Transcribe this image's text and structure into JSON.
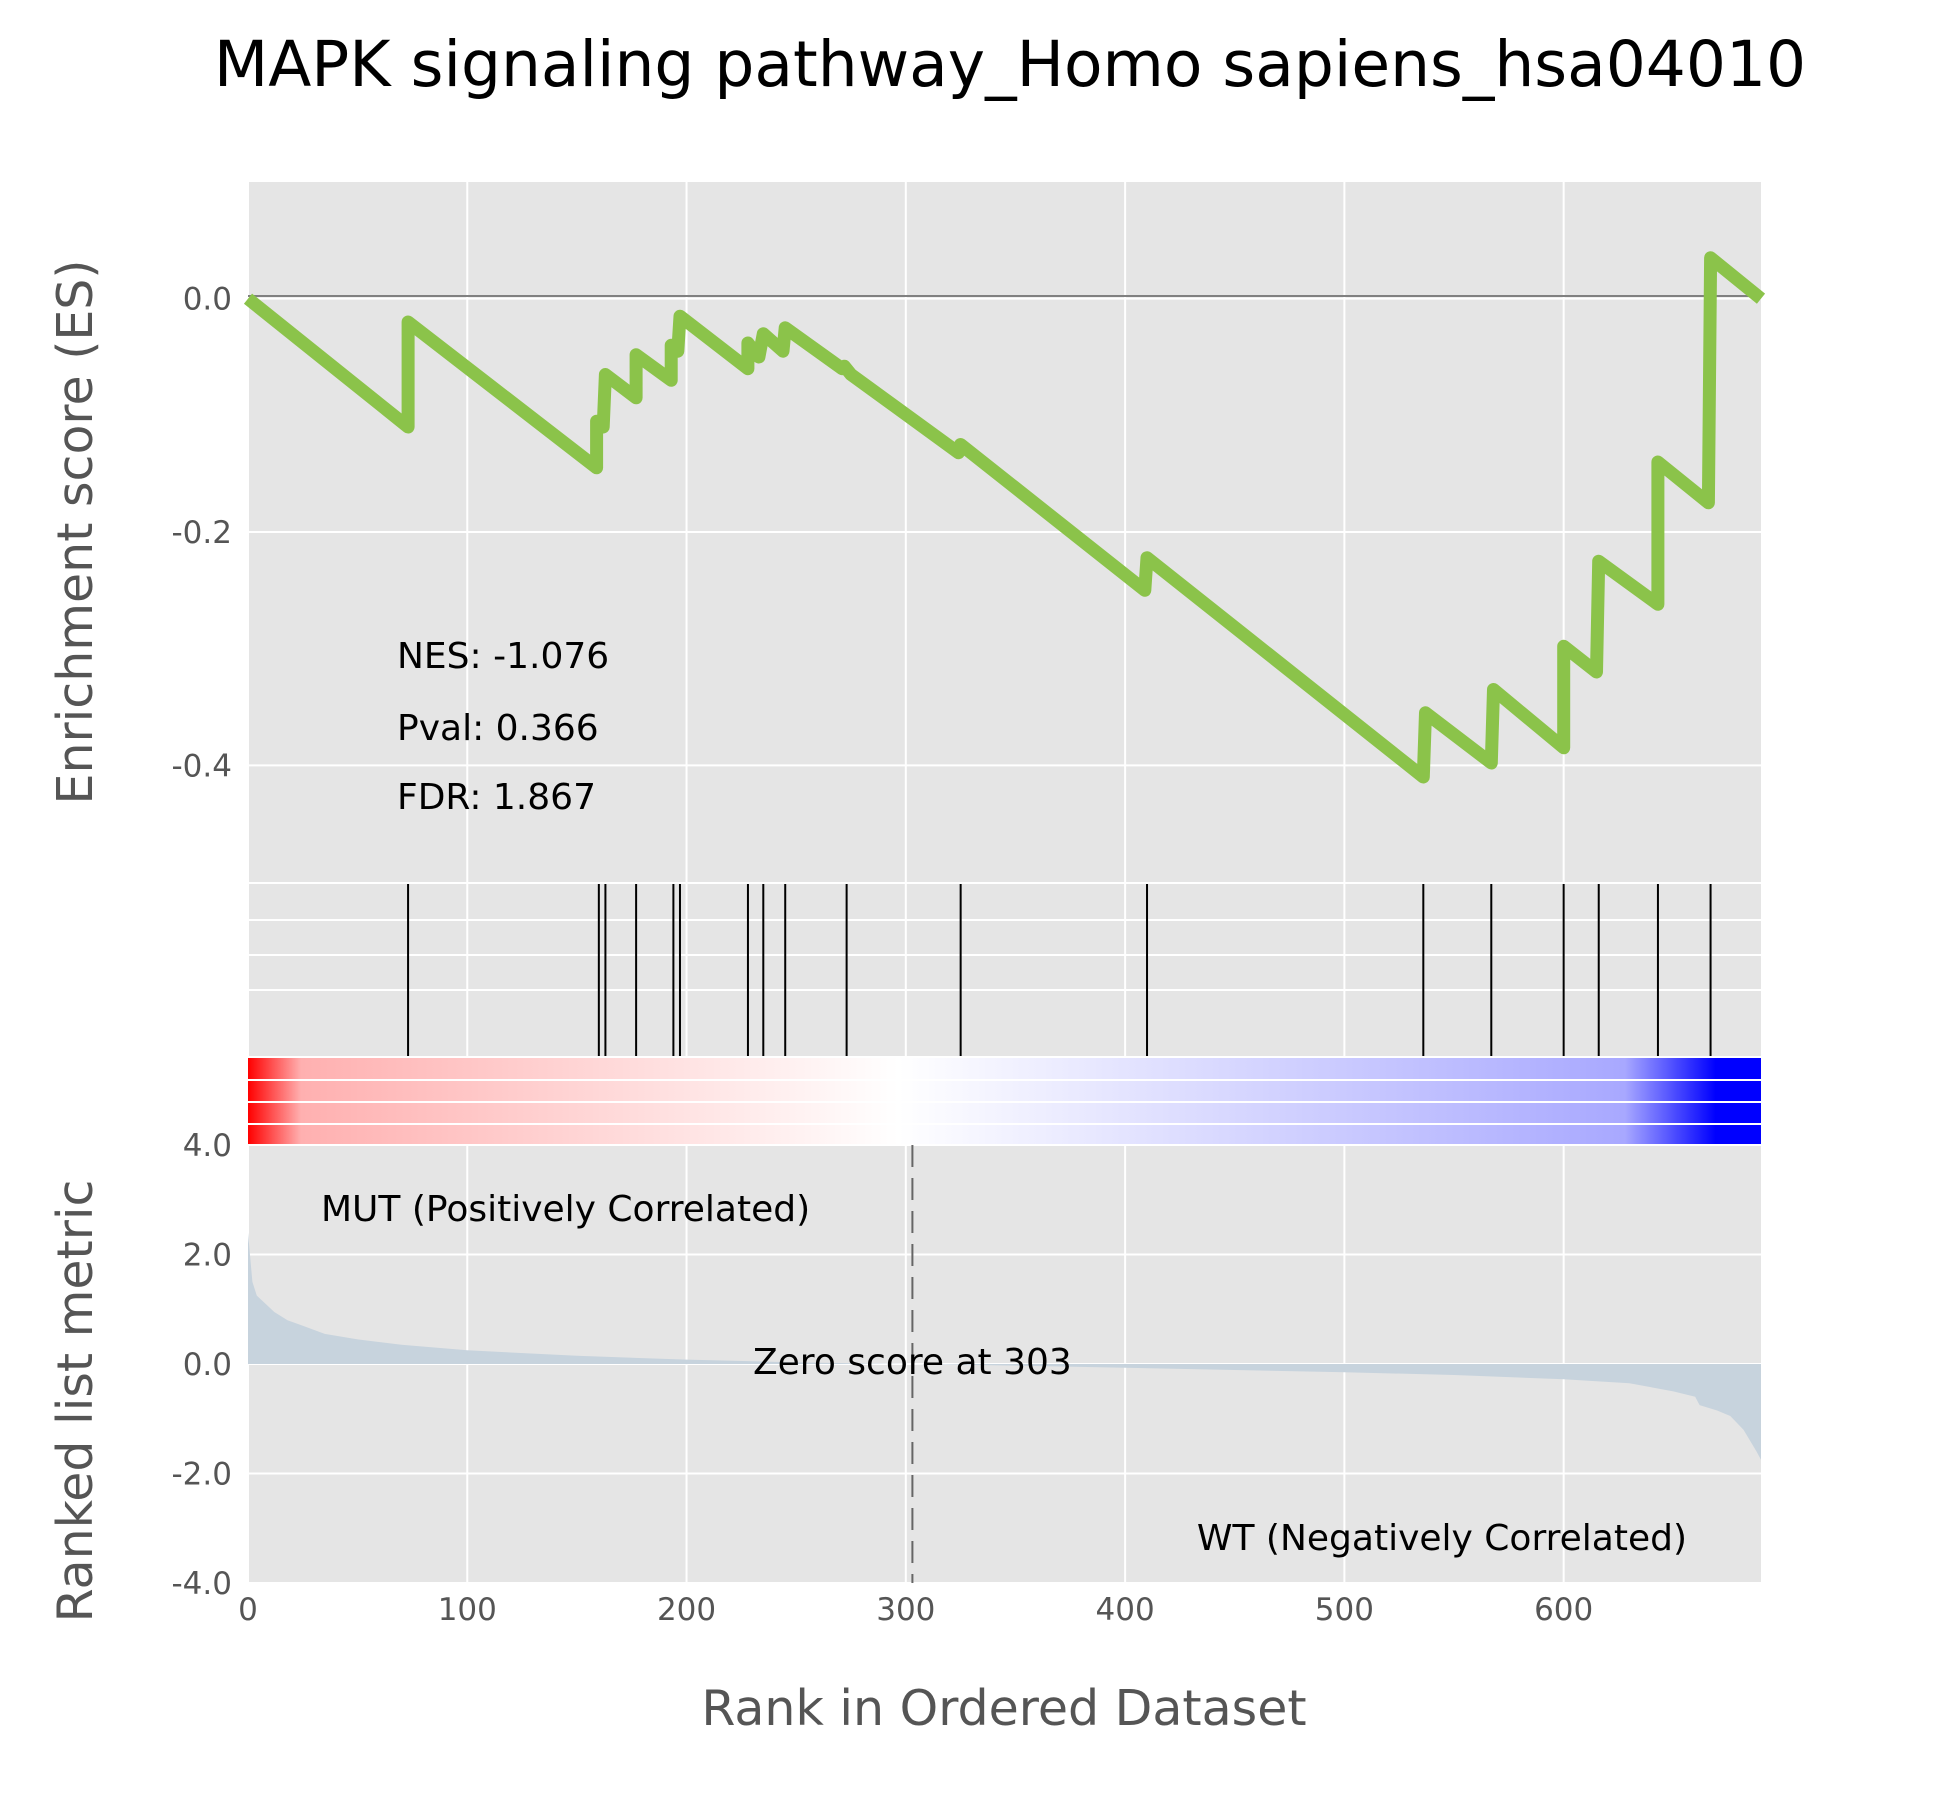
{
  "chart_data": {
    "type": "line",
    "title": "MAPK signaling pathway_Homo sapiens_hsa04010",
    "xlabel": "Rank in Ordered Dataset",
    "xlim": [
      0,
      690
    ],
    "x_ticks": [
      "0",
      "100",
      "200",
      "300",
      "400",
      "500",
      "600"
    ],
    "grid": true,
    "es_panel": {
      "ylabel": "Enrichment score (ES)",
      "ylim": [
        -0.5,
        0.1
      ],
      "y_ticks": [
        {
          "value": 0.0,
          "label": "0.0"
        },
        {
          "value": -0.2,
          "label": "-0.2"
        },
        {
          "value": -0.4,
          "label": "-0.4"
        }
      ],
      "line_color": "#8bc34a",
      "series": [
        {
          "points": [
            [
              0,
              0.0
            ],
            [
              73,
              -0.11
            ],
            [
              73,
              -0.02
            ],
            [
              159,
              -0.145
            ],
            [
              159,
              -0.105
            ],
            [
              162,
              -0.11
            ],
            [
              163,
              -0.065
            ],
            [
              177,
              -0.085
            ],
            [
              177,
              -0.048
            ],
            [
              193,
              -0.07
            ],
            [
              193,
              -0.04
            ],
            [
              196,
              -0.045
            ],
            [
              197,
              -0.015
            ],
            [
              228,
              -0.06
            ],
            [
              228,
              -0.038
            ],
            [
              233,
              -0.05
            ],
            [
              235,
              -0.03
            ],
            [
              244,
              -0.045
            ],
            [
              245,
              -0.025
            ],
            [
              271,
              -0.06
            ],
            [
              272,
              -0.058
            ],
            [
              275,
              -0.065
            ],
            [
              324,
              -0.132
            ],
            [
              325,
              -0.125
            ],
            [
              409,
              -0.25
            ],
            [
              410,
              -0.222
            ],
            [
              536,
              -0.41
            ],
            [
              537,
              -0.355
            ],
            [
              567,
              -0.398
            ],
            [
              568,
              -0.335
            ],
            [
              600,
              -0.385
            ],
            [
              600,
              -0.298
            ],
            [
              615,
              -0.32
            ],
            [
              616,
              -0.225
            ],
            [
              643,
              -0.262
            ],
            [
              643,
              -0.14
            ],
            [
              666,
              -0.175
            ],
            [
              667,
              0.035
            ],
            [
              690,
              0.0
            ]
          ]
        }
      ],
      "annotations": [
        "NES: -1.076",
        "Pval: 0.366",
        "FDR: 1.867"
      ]
    },
    "hit_positions": [
      73,
      160,
      163,
      177,
      194,
      197,
      228,
      235,
      245,
      273,
      325,
      410,
      536,
      567,
      600,
      616,
      643,
      667
    ],
    "heatmap": {
      "from_color": "#ff0000",
      "mid_color": "#ffffff",
      "to_color": "#0000ff"
    },
    "rank_panel": {
      "ylabel": "Ranked list metric",
      "ylim": [
        -4.0,
        4.0
      ],
      "y_ticks": [
        {
          "value": 4.0,
          "label": "4.0"
        },
        {
          "value": 2.0,
          "label": "2.0"
        },
        {
          "value": 0.0,
          "label": "0.0"
        },
        {
          "value": -2.0,
          "label": "-2.0"
        },
        {
          "value": -4.0,
          "label": "-4.0"
        }
      ],
      "fill_color": "#c7d3dd",
      "metric_points": [
        [
          0,
          2.4
        ],
        [
          2,
          1.5
        ],
        [
          4,
          1.25
        ],
        [
          8,
          1.1
        ],
        [
          12,
          0.95
        ],
        [
          18,
          0.8
        ],
        [
          25,
          0.7
        ],
        [
          35,
          0.55
        ],
        [
          50,
          0.45
        ],
        [
          70,
          0.35
        ],
        [
          100,
          0.25
        ],
        [
          150,
          0.15
        ],
        [
          200,
          0.08
        ],
        [
          250,
          0.03
        ],
        [
          303,
          0.0
        ],
        [
          350,
          -0.03
        ],
        [
          400,
          -0.07
        ],
        [
          450,
          -0.11
        ],
        [
          500,
          -0.15
        ],
        [
          550,
          -0.2
        ],
        [
          600,
          -0.28
        ],
        [
          630,
          -0.35
        ],
        [
          650,
          -0.5
        ],
        [
          660,
          -0.6
        ],
        [
          662,
          -0.75
        ],
        [
          670,
          -0.85
        ],
        [
          676,
          -0.95
        ],
        [
          682,
          -1.2
        ],
        [
          688,
          -1.6
        ],
        [
          690,
          -1.75
        ]
      ],
      "zero_score_x": 303,
      "zero_label": "Zero score at 303",
      "pos_label": "MUT (Positively Correlated)",
      "pos_color": "#ff0000",
      "neg_label": "WT (Negatively Correlated)",
      "neg_color": "#0000ff"
    }
  }
}
